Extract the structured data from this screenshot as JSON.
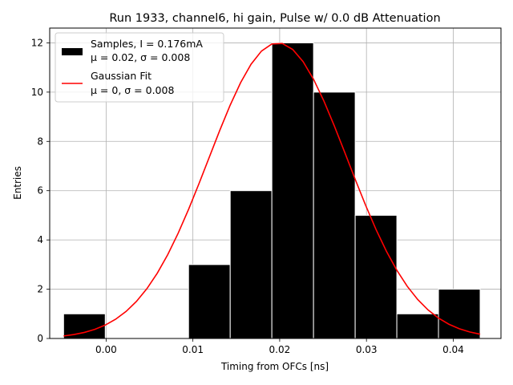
{
  "chart_data": {
    "type": "bar",
    "title": "Run 1933, channel6, hi gain, Pulse w/ 0.0 dB Attenuation",
    "xlabel": "Timing from OFCs [ns]",
    "ylabel": "Entries",
    "xlim": [
      -0.0065,
      0.0455
    ],
    "ylim": [
      0,
      12.6
    ],
    "grid": true,
    "legend_position": "top-left",
    "x_ticks": [
      0.0,
      0.01,
      0.02,
      0.03,
      0.04
    ],
    "x_tick_labels": [
      "0.00",
      "0.01",
      "0.02",
      "0.03",
      "0.04"
    ],
    "y_ticks": [
      0,
      2,
      4,
      6,
      8,
      10,
      12
    ],
    "y_tick_labels": [
      "0",
      "2",
      "4",
      "6",
      "8",
      "10",
      "12"
    ],
    "histogram": {
      "name": "Samples",
      "bins": [
        {
          "x0": -0.0049,
          "x1": -0.0001,
          "count": 1
        },
        {
          "x0": 0.0095,
          "x1": 0.0143,
          "count": 3
        },
        {
          "x0": 0.0143,
          "x1": 0.0191,
          "count": 6
        },
        {
          "x0": 0.0191,
          "x1": 0.0239,
          "count": 12
        },
        {
          "x0": 0.0239,
          "x1": 0.0287,
          "count": 10
        },
        {
          "x0": 0.0287,
          "x1": 0.0335,
          "count": 5
        },
        {
          "x0": 0.0335,
          "x1": 0.0383,
          "count": 1
        },
        {
          "x0": 0.0383,
          "x1": 0.0431,
          "count": 2
        }
      ],
      "color": "#000000"
    },
    "fit": {
      "name": "Gaussian Fit",
      "amplitude": 12.0,
      "mean": 0.0198,
      "sigma": 0.008,
      "x_range": [
        -0.0049,
        0.0431
      ],
      "color": "#ff0000"
    },
    "legend": [
      {
        "line1": "Samples, I = 0.176mA",
        "line2": "μ = 0.02, σ = 0.008",
        "kind": "patch",
        "color": "#000000"
      },
      {
        "line1": "Gaussian Fit",
        "line2": "μ = 0, σ = 0.008",
        "kind": "line",
        "color": "#ff0000"
      }
    ]
  }
}
